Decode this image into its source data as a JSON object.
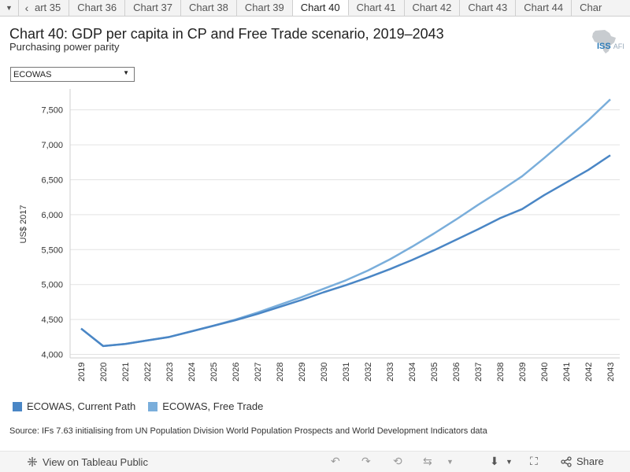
{
  "tabs": {
    "items": [
      {
        "label": "art 35"
      },
      {
        "label": "Chart 36"
      },
      {
        "label": "Chart 37"
      },
      {
        "label": "Chart 38"
      },
      {
        "label": "Chart 39"
      },
      {
        "label": "Chart 40"
      },
      {
        "label": "Chart 41"
      },
      {
        "label": "Chart 42"
      },
      {
        "label": "Chart 43"
      },
      {
        "label": "Chart 44"
      },
      {
        "label": "Char"
      }
    ],
    "active_index": 5
  },
  "header": {
    "title": "Chart 40: GDP per capita in CP and Free Trade scenario, 2019–2043",
    "subtitle": "Purchasing power parity",
    "logo_text": "ISS",
    "logo_suffix": "AFI"
  },
  "filter": {
    "selected": "ECOWAS"
  },
  "chart_data": {
    "type": "line",
    "title": "Chart 40: GDP per capita in CP and Free Trade scenario, 2019–2043",
    "subtitle": "Purchasing power parity",
    "xlabel": "",
    "ylabel": "US$ 2017",
    "ylim": [
      3950,
      7800
    ],
    "yticks": [
      4000,
      4500,
      5000,
      5500,
      6000,
      6500,
      7000,
      7500
    ],
    "ytick_labels": [
      "4,000",
      "4,500",
      "5,000",
      "5,500",
      "6,000",
      "6,500",
      "7,000",
      "7,500"
    ],
    "x": [
      "2019",
      "2020",
      "2021",
      "2022",
      "2023",
      "2024",
      "2025",
      "2026",
      "2027",
      "2028",
      "2029",
      "2030",
      "2031",
      "2032",
      "2033",
      "2034",
      "2035",
      "2036",
      "2037",
      "2038",
      "2039",
      "2040",
      "2041",
      "2042",
      "2043"
    ],
    "series": [
      {
        "name": "ECOWAS, Current Path",
        "color": "#4a86c5",
        "values": [
          4370,
          4120,
          4150,
          4200,
          4250,
          4330,
          4410,
          4490,
          4580,
          4680,
          4780,
          4890,
          4990,
          5100,
          5220,
          5350,
          5490,
          5640,
          5790,
          5950,
          6080,
          6280,
          6460,
          6640,
          6850
        ]
      },
      {
        "name": "ECOWAS, Free Trade",
        "color": "#7aaedb",
        "values": [
          4370,
          4120,
          4150,
          4200,
          4250,
          4330,
          4410,
          4500,
          4600,
          4710,
          4820,
          4940,
          5060,
          5200,
          5360,
          5540,
          5730,
          5930,
          6140,
          6340,
          6550,
          6810,
          7080,
          7350,
          7650
        ]
      }
    ],
    "legend_position": "bottom-left"
  },
  "source": "Source: IFs 7.63 initialising from UN Population Division World Population Prospects and World Development Indicators data",
  "footer": {
    "view_label": "View on Tableau Public",
    "share_label": "Share"
  }
}
